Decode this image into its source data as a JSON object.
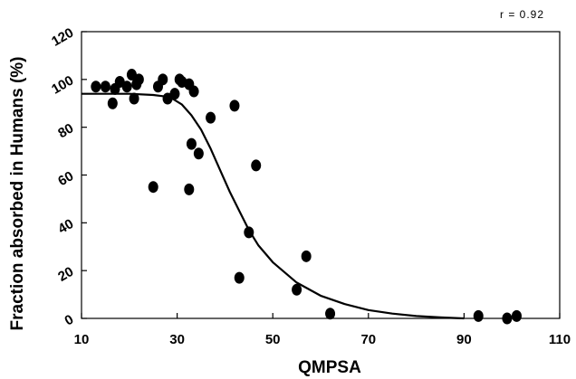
{
  "chart_data": {
    "type": "scatter",
    "xlabel": "QMPSA",
    "ylabel": "Fraction absorbed in Humans (%)",
    "annotation": "r = 0.92",
    "xlim": [
      10,
      110
    ],
    "ylim": [
      0,
      120
    ],
    "x_ticks": [
      10,
      30,
      50,
      70,
      90,
      110
    ],
    "y_ticks": [
      0,
      20,
      40,
      60,
      80,
      100,
      120
    ],
    "grid": false,
    "colors": {
      "points": "#000000",
      "curve": "#000000",
      "axes": "#000000"
    },
    "points": [
      {
        "x": 13,
        "y": 97
      },
      {
        "x": 15,
        "y": 97
      },
      {
        "x": 16.5,
        "y": 90
      },
      {
        "x": 17,
        "y": 96
      },
      {
        "x": 18,
        "y": 99
      },
      {
        "x": 19.5,
        "y": 97
      },
      {
        "x": 20.5,
        "y": 102
      },
      {
        "x": 21,
        "y": 92
      },
      {
        "x": 21.5,
        "y": 98
      },
      {
        "x": 22,
        "y": 100
      },
      {
        "x": 25,
        "y": 55
      },
      {
        "x": 26,
        "y": 97
      },
      {
        "x": 27,
        "y": 100
      },
      {
        "x": 28,
        "y": 92
      },
      {
        "x": 29.5,
        "y": 94
      },
      {
        "x": 30.5,
        "y": 100
      },
      {
        "x": 31,
        "y": 99
      },
      {
        "x": 32.5,
        "y": 54
      },
      {
        "x": 32.5,
        "y": 98
      },
      {
        "x": 33,
        "y": 73
      },
      {
        "x": 33.5,
        "y": 95
      },
      {
        "x": 34.5,
        "y": 69
      },
      {
        "x": 37,
        "y": 84
      },
      {
        "x": 42,
        "y": 89
      },
      {
        "x": 43,
        "y": 17
      },
      {
        "x": 45,
        "y": 36
      },
      {
        "x": 46.5,
        "y": 64
      },
      {
        "x": 55,
        "y": 12
      },
      {
        "x": 57,
        "y": 26
      },
      {
        "x": 62,
        "y": 2
      },
      {
        "x": 93,
        "y": 1
      },
      {
        "x": 99,
        "y": 0
      },
      {
        "x": 101,
        "y": 1
      }
    ],
    "fit_curve": {
      "x": [
        10,
        15,
        20,
        25,
        27,
        29,
        31,
        33,
        35,
        37,
        39,
        41,
        43,
        45,
        47,
        50,
        55,
        60,
        65,
        70,
        75,
        80,
        85,
        90
      ],
      "y": [
        94,
        94,
        94,
        93.5,
        93,
        92,
        89.5,
        85,
        79,
        71,
        62,
        53,
        45,
        37,
        30.5,
        23.5,
        15,
        9.5,
        6,
        3.5,
        2,
        1,
        0.4,
        0
      ]
    }
  }
}
